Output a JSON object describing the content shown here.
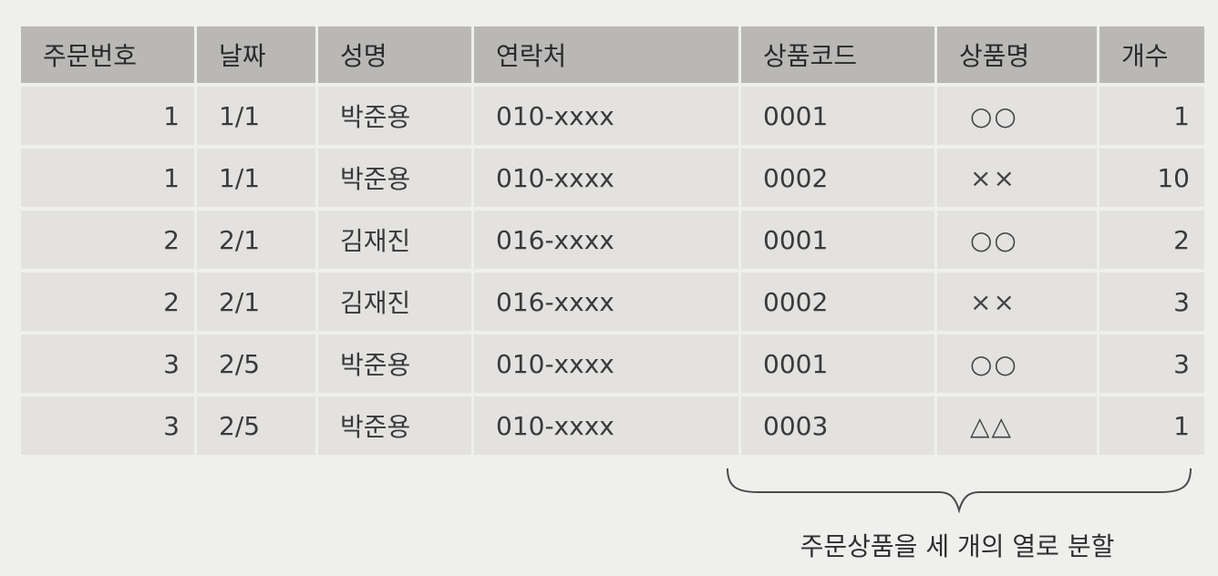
{
  "table": {
    "headers": [
      "주문번호",
      "날짜",
      "성명",
      "연락처",
      "상품코드",
      "상품명",
      "개수"
    ],
    "rows": [
      [
        "1",
        "1/1",
        "박준용",
        "010-xxxx",
        "0001",
        "○○",
        "1"
      ],
      [
        "1",
        "1/1",
        "박준용",
        "010-xxxx",
        "0002",
        "××",
        "10"
      ],
      [
        "2",
        "2/1",
        "김재진",
        "016-xxxx",
        "0001",
        "○○",
        "2"
      ],
      [
        "2",
        "2/1",
        "김재진",
        "016-xxxx",
        "0002",
        "××",
        "3"
      ],
      [
        "3",
        "2/5",
        "박준용",
        "010-xxxx",
        "0001",
        "○○",
        "3"
      ],
      [
        "3",
        "2/5",
        "박준용",
        "010-xxxx",
        "0003",
        "△△",
        "1"
      ]
    ]
  },
  "annotation": {
    "caption": "주문상품을 세 개의 열로 분할"
  },
  "colors": {
    "background": "#efefed",
    "header_fill": "#b9b8b6",
    "cell_fill": "#e3e2e0",
    "text": "#3a3a3a"
  }
}
